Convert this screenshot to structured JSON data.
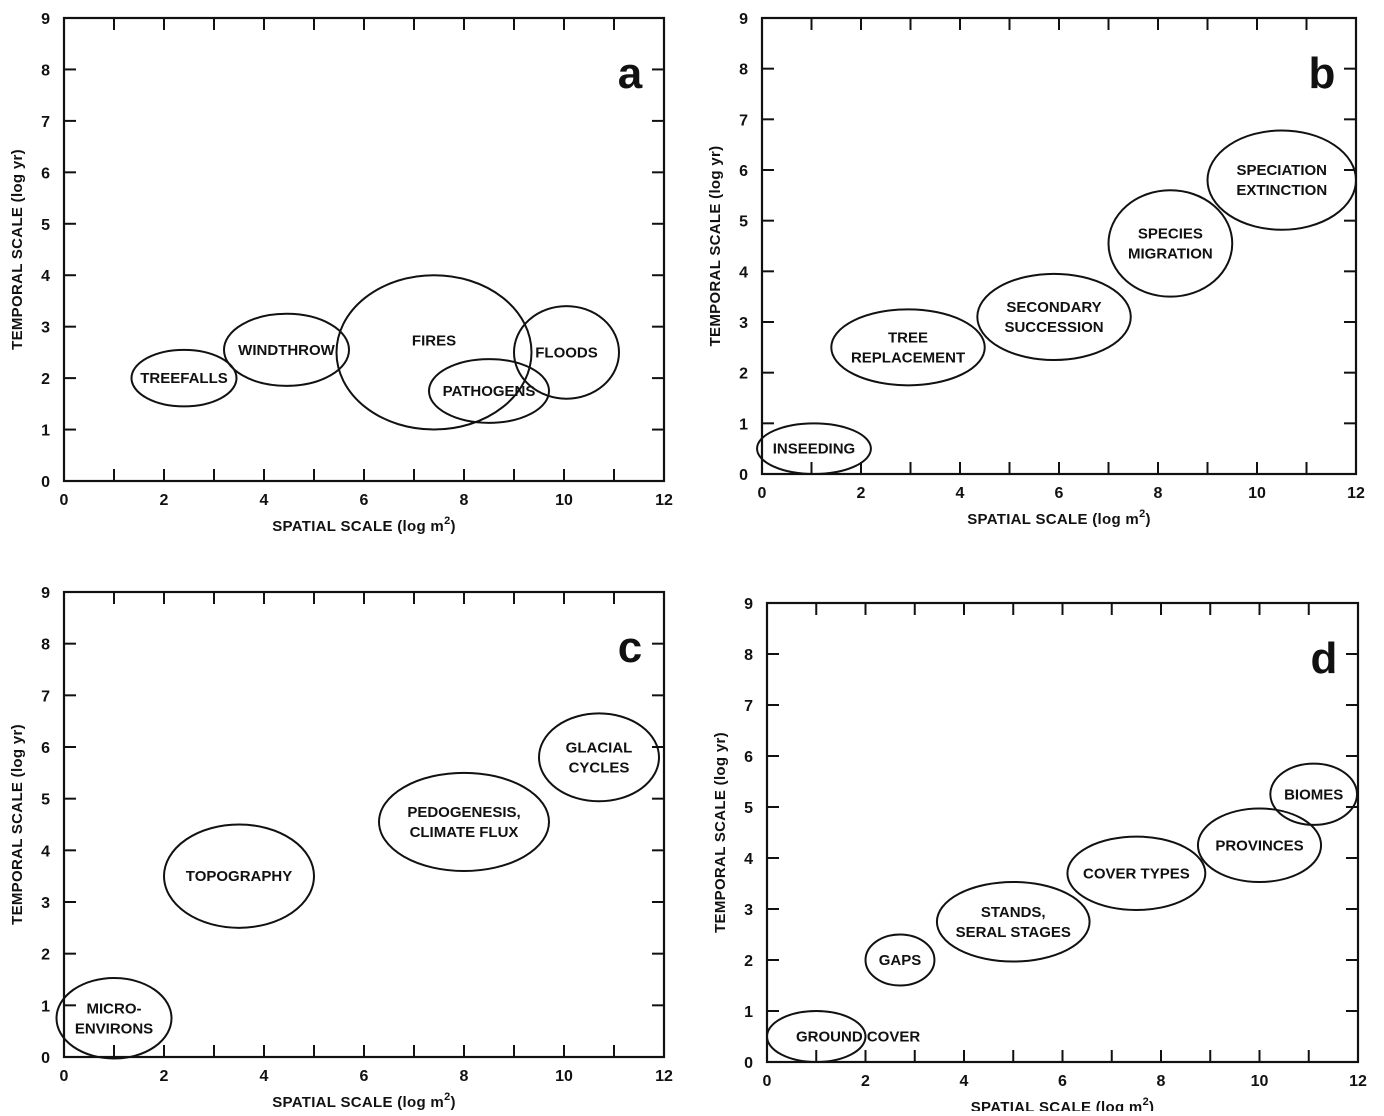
{
  "chart_data": [
    {
      "type": "scatter",
      "panel": "a",
      "xlabel": "SPATIAL SCALE (log m",
      "xlabel_sup": "2",
      "xlabel_close": ")",
      "ylabel": "TEMPORAL SCALE (log yr)",
      "xlim": [
        0,
        12
      ],
      "ylim": [
        0,
        9
      ],
      "x_ticks": [
        0,
        2,
        4,
        6,
        8,
        10,
        12
      ],
      "y_ticks": [
        0,
        1,
        2,
        3,
        4,
        5,
        6,
        7,
        8,
        9
      ],
      "ellipses": [
        {
          "lines": [
            "TREEFALLS"
          ],
          "cx": 2.4,
          "cy": 2.0,
          "rx": 1.05,
          "ry": 0.55
        },
        {
          "lines": [
            "WINDTHROW"
          ],
          "cx": 4.45,
          "cy": 2.55,
          "rx": 1.25,
          "ry": 0.7
        },
        {
          "lines": [
            "FIRES"
          ],
          "cx": 7.4,
          "cy": 2.5,
          "rx": 1.95,
          "ry": 1.5,
          "label_x": 7.4,
          "label_y": 2.73
        },
        {
          "lines": [
            "FLOODS"
          ],
          "cx": 10.05,
          "cy": 2.5,
          "rx": 1.05,
          "ry": 0.9
        },
        {
          "lines": [
            "PATHOGENS"
          ],
          "cx": 8.5,
          "cy": 1.75,
          "rx": 1.2,
          "ry": 0.62
        }
      ]
    },
    {
      "type": "scatter",
      "panel": "b",
      "xlabel": "SPATIAL SCALE (log m",
      "xlabel_sup": "2",
      "xlabel_close": ")",
      "ylabel": "TEMPORAL SCALE (log yr)",
      "xlim": [
        0,
        12
      ],
      "ylim": [
        0,
        9
      ],
      "x_ticks": [
        0,
        2,
        4,
        6,
        8,
        10,
        12
      ],
      "y_ticks": [
        0,
        1,
        2,
        3,
        4,
        5,
        6,
        7,
        8,
        9
      ],
      "ellipses": [
        {
          "lines": [
            "INSEEDING"
          ],
          "cx": 1.05,
          "cy": 0.5,
          "rx": 1.15,
          "ry": 0.5
        },
        {
          "lines": [
            "TREE",
            "REPLACEMENT"
          ],
          "cx": 2.95,
          "cy": 2.5,
          "rx": 1.55,
          "ry": 0.75
        },
        {
          "lines": [
            "SECONDARY",
            "SUCCESSION"
          ],
          "cx": 5.9,
          "cy": 3.1,
          "rx": 1.55,
          "ry": 0.85
        },
        {
          "lines": [
            "SPECIES",
            "MIGRATION"
          ],
          "cx": 8.25,
          "cy": 4.55,
          "rx": 1.25,
          "ry": 1.05
        },
        {
          "lines": [
            "SPECIATION",
            "EXTINCTION"
          ],
          "cx": 10.5,
          "cy": 5.8,
          "rx": 1.5,
          "ry": 0.98
        }
      ]
    },
    {
      "type": "scatter",
      "panel": "c",
      "xlabel": "SPATIAL SCALE (log m",
      "xlabel_sup": "2",
      "xlabel_close": ")",
      "ylabel": "TEMPORAL SCALE (log yr)",
      "xlim": [
        0,
        12
      ],
      "ylim": [
        0,
        9
      ],
      "x_ticks": [
        0,
        2,
        4,
        6,
        8,
        10,
        12
      ],
      "y_ticks": [
        0,
        1,
        2,
        3,
        4,
        5,
        6,
        7,
        8,
        9
      ],
      "ellipses": [
        {
          "lines": [
            "MICRO-",
            "ENVIRONS"
          ],
          "cx": 1.0,
          "cy": 0.75,
          "rx": 1.15,
          "ry": 0.78
        },
        {
          "lines": [
            "TOPOGRAPHY"
          ],
          "cx": 3.5,
          "cy": 3.5,
          "rx": 1.5,
          "ry": 1.0
        },
        {
          "lines": [
            "PEDOGENESIS,",
            "CLIMATE FLUX"
          ],
          "cx": 8.0,
          "cy": 4.55,
          "rx": 1.7,
          "ry": 0.95
        },
        {
          "lines": [
            "GLACIAL",
            "CYCLES"
          ],
          "cx": 10.7,
          "cy": 5.8,
          "rx": 1.2,
          "ry": 0.85
        }
      ]
    },
    {
      "type": "scatter",
      "panel": "d",
      "xlabel": "SPATIAL  SCALE (log m",
      "xlabel_sup": "2",
      "xlabel_close": ")",
      "ylabel": "TEMPORAL SCALE (log yr)",
      "xlim": [
        0,
        12
      ],
      "ylim": [
        0,
        9
      ],
      "x_ticks": [
        0,
        2,
        4,
        6,
        8,
        10,
        12
      ],
      "y_ticks": [
        0,
        1,
        2,
        3,
        4,
        5,
        6,
        7,
        8,
        9
      ],
      "ellipses": [
        {
          "lines": [
            "GROUND  COVER"
          ],
          "cx": 1.0,
          "cy": 0.5,
          "rx": 1.0,
          "ry": 0.5,
          "label_x": 1.85,
          "label_y": 0.5
        },
        {
          "lines": [
            "GAPS"
          ],
          "cx": 2.7,
          "cy": 2.0,
          "rx": 0.7,
          "ry": 0.5
        },
        {
          "lines": [
            "STANDS,",
            "SERAL STAGES"
          ],
          "cx": 5.0,
          "cy": 2.75,
          "rx": 1.55,
          "ry": 0.78
        },
        {
          "lines": [
            "COVER TYPES"
          ],
          "cx": 7.5,
          "cy": 3.7,
          "rx": 1.4,
          "ry": 0.72
        },
        {
          "lines": [
            "PROVINCES"
          ],
          "cx": 10.0,
          "cy": 4.25,
          "rx": 1.25,
          "ry": 0.72
        },
        {
          "lines": [
            "BIOMES"
          ],
          "cx": 11.1,
          "cy": 5.25,
          "rx": 0.88,
          "ry": 0.6
        }
      ]
    }
  ]
}
